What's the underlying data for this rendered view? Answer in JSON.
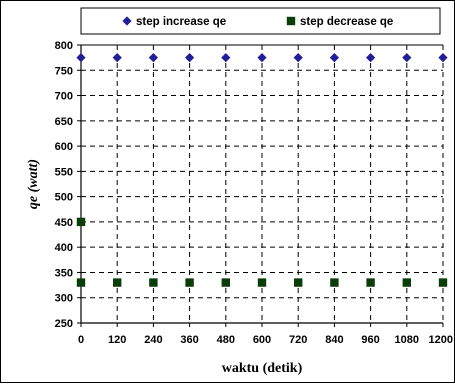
{
  "chart_data": {
    "type": "scatter",
    "xlabel": "waktu (detik)",
    "ylabel": "qe  (watt)",
    "xlim": [
      0,
      1200
    ],
    "ylim": [
      250,
      800
    ],
    "x_ticks": [
      0,
      120,
      240,
      360,
      480,
      600,
      720,
      840,
      960,
      1080,
      1200
    ],
    "y_ticks": [
      250,
      300,
      350,
      400,
      450,
      500,
      550,
      600,
      650,
      700,
      750,
      800
    ],
    "grid": true,
    "legend_position": "top",
    "series": [
      {
        "name": "step increase qe",
        "marker": "diamond",
        "color": "#1f1f9a",
        "points": [
          [
            0,
            775
          ],
          [
            120,
            775
          ],
          [
            240,
            775
          ],
          [
            360,
            775
          ],
          [
            480,
            775
          ],
          [
            600,
            775
          ],
          [
            720,
            775
          ],
          [
            840,
            775
          ],
          [
            960,
            775
          ],
          [
            1080,
            775
          ],
          [
            1200,
            775
          ]
        ]
      },
      {
        "name": "step decrease qe",
        "marker": "square",
        "color": "#0b3d0b",
        "points": [
          [
            0,
            450
          ],
          [
            0,
            330
          ],
          [
            120,
            330
          ],
          [
            240,
            330
          ],
          [
            360,
            330
          ],
          [
            480,
            330
          ],
          [
            600,
            330
          ],
          [
            720,
            330
          ],
          [
            840,
            330
          ],
          [
            960,
            330
          ],
          [
            1080,
            330
          ],
          [
            1200,
            330
          ]
        ]
      }
    ]
  }
}
